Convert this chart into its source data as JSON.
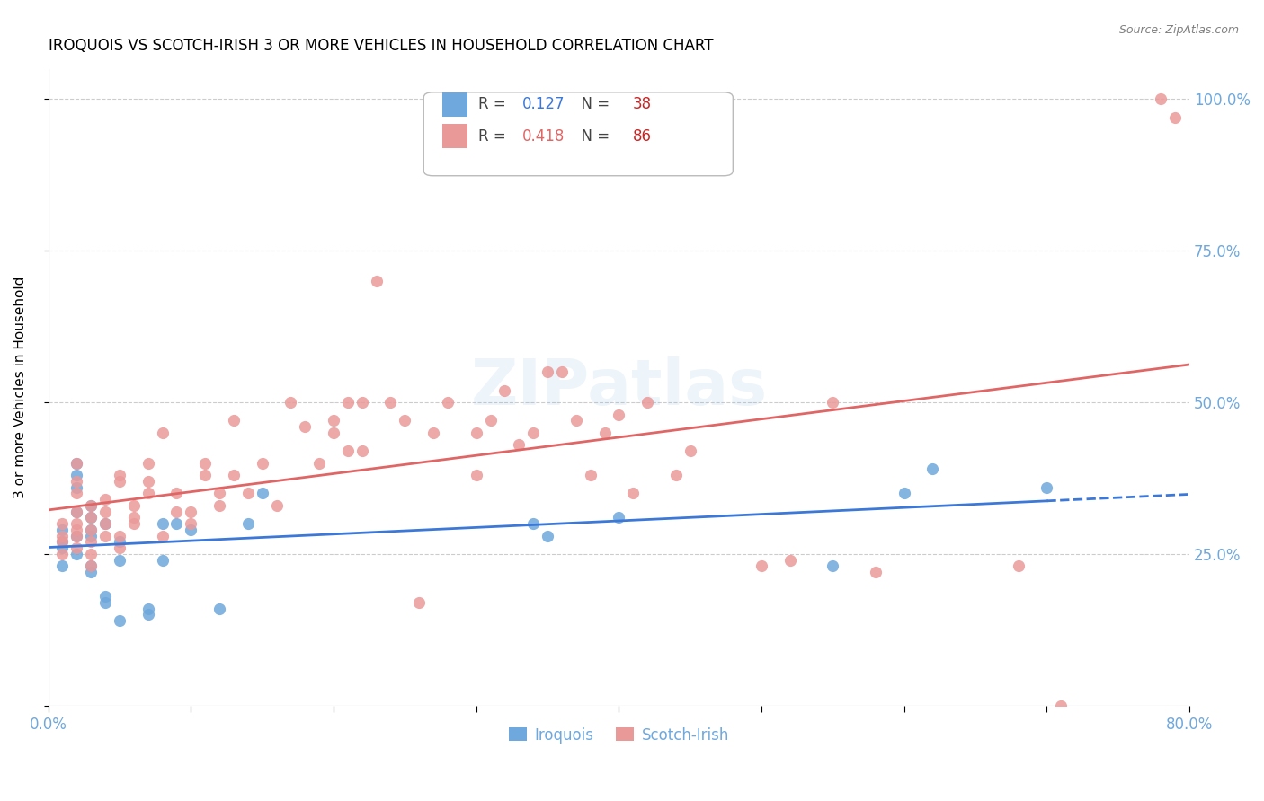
{
  "title": "IROQUOIS VS SCOTCH-IRISH 3 OR MORE VEHICLES IN HOUSEHOLD CORRELATION CHART",
  "source": "Source: ZipAtlas.com",
  "ylabel": "3 or more Vehicles in Household",
  "watermark": "ZIPatlas",
  "iroquois_R": 0.127,
  "iroquois_N": 38,
  "scotch_irish_R": 0.418,
  "scotch_irish_N": 86,
  "xmin": 0.0,
  "xmax": 0.8,
  "ymin": 0.0,
  "ymax": 1.05,
  "yticks_right": [
    0.25,
    0.5,
    0.75,
    1.0
  ],
  "blue_color": "#6fa8dc",
  "pink_color": "#ea9999",
  "blue_line_color": "#3c78d8",
  "pink_line_color": "#e06666",
  "axis_label_color": "#6fa8dc",
  "grid_color": "#cccccc",
  "iroquois_x": [
    0.01,
    0.01,
    0.01,
    0.01,
    0.02,
    0.02,
    0.02,
    0.02,
    0.02,
    0.02,
    0.03,
    0.03,
    0.03,
    0.03,
    0.03,
    0.03,
    0.04,
    0.04,
    0.04,
    0.05,
    0.05,
    0.05,
    0.07,
    0.07,
    0.08,
    0.08,
    0.09,
    0.1,
    0.12,
    0.14,
    0.15,
    0.34,
    0.35,
    0.4,
    0.55,
    0.6,
    0.62,
    0.7
  ],
  "iroquois_y": [
    0.26,
    0.27,
    0.29,
    0.23,
    0.25,
    0.32,
    0.36,
    0.38,
    0.4,
    0.28,
    0.29,
    0.31,
    0.33,
    0.28,
    0.22,
    0.23,
    0.17,
    0.18,
    0.3,
    0.27,
    0.24,
    0.14,
    0.15,
    0.16,
    0.3,
    0.24,
    0.3,
    0.29,
    0.16,
    0.3,
    0.35,
    0.3,
    0.28,
    0.31,
    0.23,
    0.35,
    0.39,
    0.36
  ],
  "scotch_irish_x": [
    0.01,
    0.01,
    0.01,
    0.01,
    0.02,
    0.02,
    0.02,
    0.02,
    0.02,
    0.02,
    0.02,
    0.02,
    0.03,
    0.03,
    0.03,
    0.03,
    0.03,
    0.03,
    0.04,
    0.04,
    0.04,
    0.04,
    0.05,
    0.05,
    0.05,
    0.05,
    0.06,
    0.06,
    0.06,
    0.07,
    0.07,
    0.07,
    0.08,
    0.08,
    0.09,
    0.09,
    0.1,
    0.1,
    0.11,
    0.11,
    0.12,
    0.12,
    0.13,
    0.13,
    0.14,
    0.15,
    0.16,
    0.17,
    0.18,
    0.19,
    0.2,
    0.2,
    0.21,
    0.21,
    0.22,
    0.22,
    0.23,
    0.24,
    0.25,
    0.26,
    0.27,
    0.28,
    0.3,
    0.3,
    0.31,
    0.32,
    0.33,
    0.34,
    0.35,
    0.36,
    0.37,
    0.38,
    0.39,
    0.4,
    0.41,
    0.42,
    0.44,
    0.45,
    0.5,
    0.52,
    0.55,
    0.58,
    0.68,
    0.71,
    0.78,
    0.79
  ],
  "scotch_irish_y": [
    0.27,
    0.28,
    0.3,
    0.25,
    0.26,
    0.28,
    0.29,
    0.3,
    0.32,
    0.35,
    0.37,
    0.4,
    0.23,
    0.25,
    0.27,
    0.29,
    0.31,
    0.33,
    0.28,
    0.3,
    0.32,
    0.34,
    0.26,
    0.28,
    0.37,
    0.38,
    0.3,
    0.31,
    0.33,
    0.35,
    0.37,
    0.4,
    0.28,
    0.45,
    0.32,
    0.35,
    0.3,
    0.32,
    0.38,
    0.4,
    0.33,
    0.35,
    0.38,
    0.47,
    0.35,
    0.4,
    0.33,
    0.5,
    0.46,
    0.4,
    0.45,
    0.47,
    0.42,
    0.5,
    0.42,
    0.5,
    0.7,
    0.5,
    0.47,
    0.17,
    0.45,
    0.5,
    0.45,
    0.38,
    0.47,
    0.52,
    0.43,
    0.45,
    0.55,
    0.55,
    0.47,
    0.38,
    0.45,
    0.48,
    0.35,
    0.5,
    0.38,
    0.42,
    0.23,
    0.24,
    0.5,
    0.22,
    0.23,
    0.0,
    1.0,
    0.97
  ],
  "title_fontsize": 12,
  "axis_fontsize": 11,
  "tick_fontsize": 10,
  "legend_fontsize": 12,
  "watermark_fontsize": 52,
  "watermark_alpha": 0.12,
  "background_color": "#ffffff"
}
